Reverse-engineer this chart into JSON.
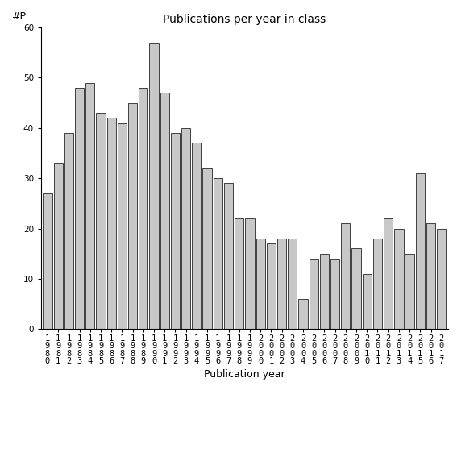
{
  "title": "Publications per year in class",
  "xlabel": "Publication year",
  "ylabel": "#P",
  "bar_color": "#c8c8c8",
  "bar_edgecolor": "#000000",
  "background_color": "#ffffff",
  "ylim": [
    0,
    60
  ],
  "yticks": [
    0,
    10,
    20,
    30,
    40,
    50,
    60
  ],
  "years": [
    "1980",
    "1981",
    "1982",
    "1983",
    "1984",
    "1985",
    "1986",
    "1987",
    "1988",
    "1989",
    "1990",
    "1991",
    "1992",
    "1993",
    "1994",
    "1995",
    "1996",
    "1997",
    "1998",
    "1999",
    "2000",
    "2001",
    "2002",
    "2003",
    "2004",
    "2005",
    "2006",
    "2007",
    "2008",
    "2009",
    "2010",
    "2011",
    "2012",
    "2013",
    "2014",
    "2015",
    "2016",
    "2017"
  ],
  "values": [
    27,
    33,
    39,
    48,
    49,
    43,
    42,
    41,
    45,
    48,
    57,
    47,
    39,
    40,
    37,
    32,
    30,
    29,
    22,
    22,
    18,
    17,
    18,
    18,
    6,
    14,
    15,
    14,
    21,
    16,
    11,
    18,
    22,
    20,
    15,
    31,
    21,
    20
  ],
  "tick_label_fontsize": 7.5,
  "axis_label_fontsize": 9,
  "title_fontsize": 10
}
